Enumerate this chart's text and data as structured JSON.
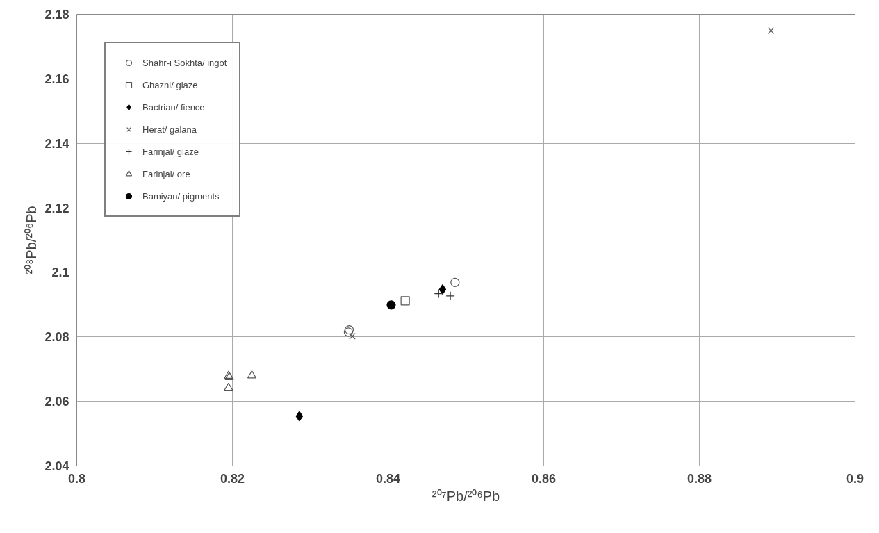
{
  "chart_data": {
    "type": "scatter",
    "xlabel": "²⁰⁷Pb/²⁰⁶Pb",
    "ylabel": "²⁰⁸Pb/²⁰⁶Pb",
    "xlim": [
      0.8,
      0.9
    ],
    "xticks": [
      0.8,
      0.82,
      0.84,
      0.86,
      0.88,
      0.9
    ],
    "ylim": [
      2.04,
      2.18
    ],
    "yticks": [
      2.04,
      2.06,
      2.08,
      2.1,
      2.12,
      2.14,
      2.16,
      2.18
    ],
    "grid": true,
    "legend": "top left",
    "series": [
      {
        "name": "Shahr-i Sokhta/ ingot",
        "color": "#555555",
        "marker": "circle",
        "x": [
          0.835,
          0.8349,
          0.8486
        ],
        "values": [
          2.0822,
          2.0815,
          2.0969
        ]
      },
      {
        "name": "Ghazni/ glaze",
        "color": "#555555",
        "marker": "square",
        "x": [
          0.8422
        ],
        "values": [
          2.0912
        ]
      },
      {
        "name": "Bactrian/ fience",
        "color": "#000000",
        "marker": "diamond",
        "x": [
          0.8286,
          0.847
        ],
        "values": [
          2.0554,
          2.0947
        ]
      },
      {
        "name": "Herat/ galana",
        "color": "#555555",
        "marker": "x",
        "x": [
          0.8354,
          0.8892
        ],
        "values": [
          2.0802,
          2.1749
        ]
      },
      {
        "name": "Farinjal/ glaze",
        "color": "#333333",
        "marker": "cross",
        "x": [
          0.8465,
          0.848
        ],
        "values": [
          2.0934,
          2.0927
        ]
      },
      {
        "name": "Farinjal/ ore",
        "color": "#555555",
        "marker": "triangle",
        "x": [
          0.8195,
          0.8195,
          0.8196,
          0.8225
        ],
        "values": [
          2.0679,
          2.0642,
          2.0675,
          2.068
        ]
      },
      {
        "name": "Bamiyan/ pigments",
        "color": "#000000",
        "marker": "dot",
        "x": [
          0.8404
        ],
        "values": [
          2.0899
        ]
      }
    ]
  }
}
